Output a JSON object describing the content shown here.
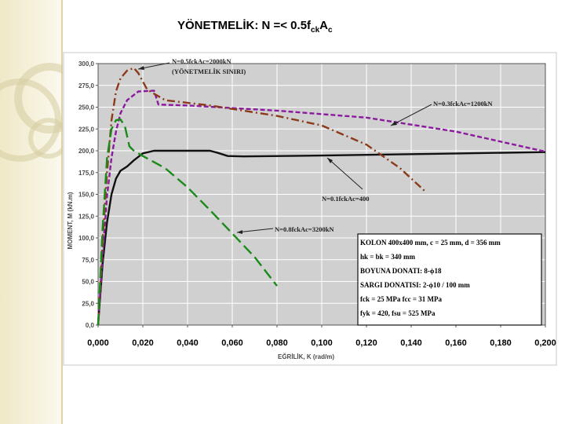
{
  "page": {
    "title": "YÖNETMELİK:  N =< 0.5f",
    "title_sub1": "ck",
    "title_mid": "A",
    "title_sub2": "c"
  },
  "chart_data": {
    "type": "line",
    "xlabel": "EĞRİLİK, K (rad/m)",
    "ylabel": "MOMENT, M (kN.m)",
    "xlim": [
      0,
      0.2
    ],
    "ylim": [
      0,
      300
    ],
    "grid": true,
    "x_ticks": [
      "0,000",
      "0,020",
      "0,040",
      "0,060",
      "0,080",
      "0,100",
      "0,120",
      "0,140",
      "0,160",
      "0,180",
      "0,200"
    ],
    "y_ticks": [
      "0,0",
      "25,0",
      "50,0",
      "75,0",
      "100,0",
      "125,0",
      "150,0",
      "175,0",
      "200,0",
      "225,0",
      "250,0",
      "275,0",
      "300,0"
    ],
    "series": [
      {
        "name": "N=0.1fckAc=400",
        "color": "#111111",
        "dash": "solid",
        "points": [
          [
            0,
            0
          ],
          [
            0.002,
            70
          ],
          [
            0.004,
            118
          ],
          [
            0.006,
            150
          ],
          [
            0.008,
            168
          ],
          [
            0.01,
            177
          ],
          [
            0.013,
            182
          ],
          [
            0.016,
            189
          ],
          [
            0.02,
            197
          ],
          [
            0.025,
            200
          ],
          [
            0.035,
            200
          ],
          [
            0.05,
            200
          ],
          [
            0.053,
            198
          ],
          [
            0.058,
            194
          ],
          [
            0.065,
            193.5
          ],
          [
            0.1,
            194.5
          ],
          [
            0.15,
            196.5
          ],
          [
            0.2,
            198.5
          ]
        ]
      },
      {
        "name": "N=0.3fckAc=1200kN",
        "color": "#8b1a9e",
        "dash": "dash",
        "points": [
          [
            0,
            0
          ],
          [
            0.002,
            80
          ],
          [
            0.004,
            148
          ],
          [
            0.006,
            192
          ],
          [
            0.008,
            222
          ],
          [
            0.01,
            243
          ],
          [
            0.013,
            258
          ],
          [
            0.018,
            268
          ],
          [
            0.025,
            269
          ],
          [
            0.027,
            253
          ],
          [
            0.04,
            252
          ],
          [
            0.08,
            246
          ],
          [
            0.12,
            238
          ],
          [
            0.16,
            222
          ],
          [
            0.2,
            199
          ]
        ]
      },
      {
        "name": "N=0.5fckAc=2000kN",
        "color": "#8b3a1a",
        "dash": "dashdot",
        "points": [
          [
            0,
            0
          ],
          [
            0.002,
            95
          ],
          [
            0.004,
            175
          ],
          [
            0.006,
            235
          ],
          [
            0.008,
            268
          ],
          [
            0.01,
            283
          ],
          [
            0.013,
            292
          ],
          [
            0.016,
            295
          ],
          [
            0.018,
            289
          ],
          [
            0.022,
            270
          ],
          [
            0.03,
            258
          ],
          [
            0.05,
            252
          ],
          [
            0.08,
            240
          ],
          [
            0.1,
            229
          ],
          [
            0.12,
            207
          ],
          [
            0.135,
            180
          ],
          [
            0.146,
            154
          ]
        ]
      },
      {
        "name": "N=0.8fckAc=3200kN",
        "color": "#1a8a1a",
        "dash": "longdash",
        "points": [
          [
            0,
            0
          ],
          [
            0.002,
            110
          ],
          [
            0.004,
            192
          ],
          [
            0.006,
            225
          ],
          [
            0.008,
            235
          ],
          [
            0.01,
            236
          ],
          [
            0.012,
            228
          ],
          [
            0.014,
            205
          ],
          [
            0.016,
            200
          ],
          [
            0.02,
            194
          ],
          [
            0.03,
            180
          ],
          [
            0.04,
            158
          ],
          [
            0.05,
            132
          ],
          [
            0.06,
            105
          ],
          [
            0.07,
            78
          ],
          [
            0.08,
            45
          ]
        ]
      }
    ],
    "annotations": {
      "n05": {
        "line1": "N=0.5fckAc=2000kN",
        "line2": "(YÖNETMELİK SINIRI)"
      },
      "n03": "N=0.3fckAc=1200kN",
      "n01": "N=0.1fckAc=400",
      "n08": "N=0.8fckAc=3200kN"
    },
    "info_box": [
      "KOLON 400x400 mm,     c = 25 mm,   d = 356 mm",
      "hk = bk = 340 mm",
      "BOYUNA DONATI: 8-ϕ18",
      "SARGI DONATISI: 2-ϕ10 / 100 mm",
      "fck = 25 MPa       fcc = 31 MPa",
      "fyk = 420,  fsu = 525 MPa"
    ]
  }
}
